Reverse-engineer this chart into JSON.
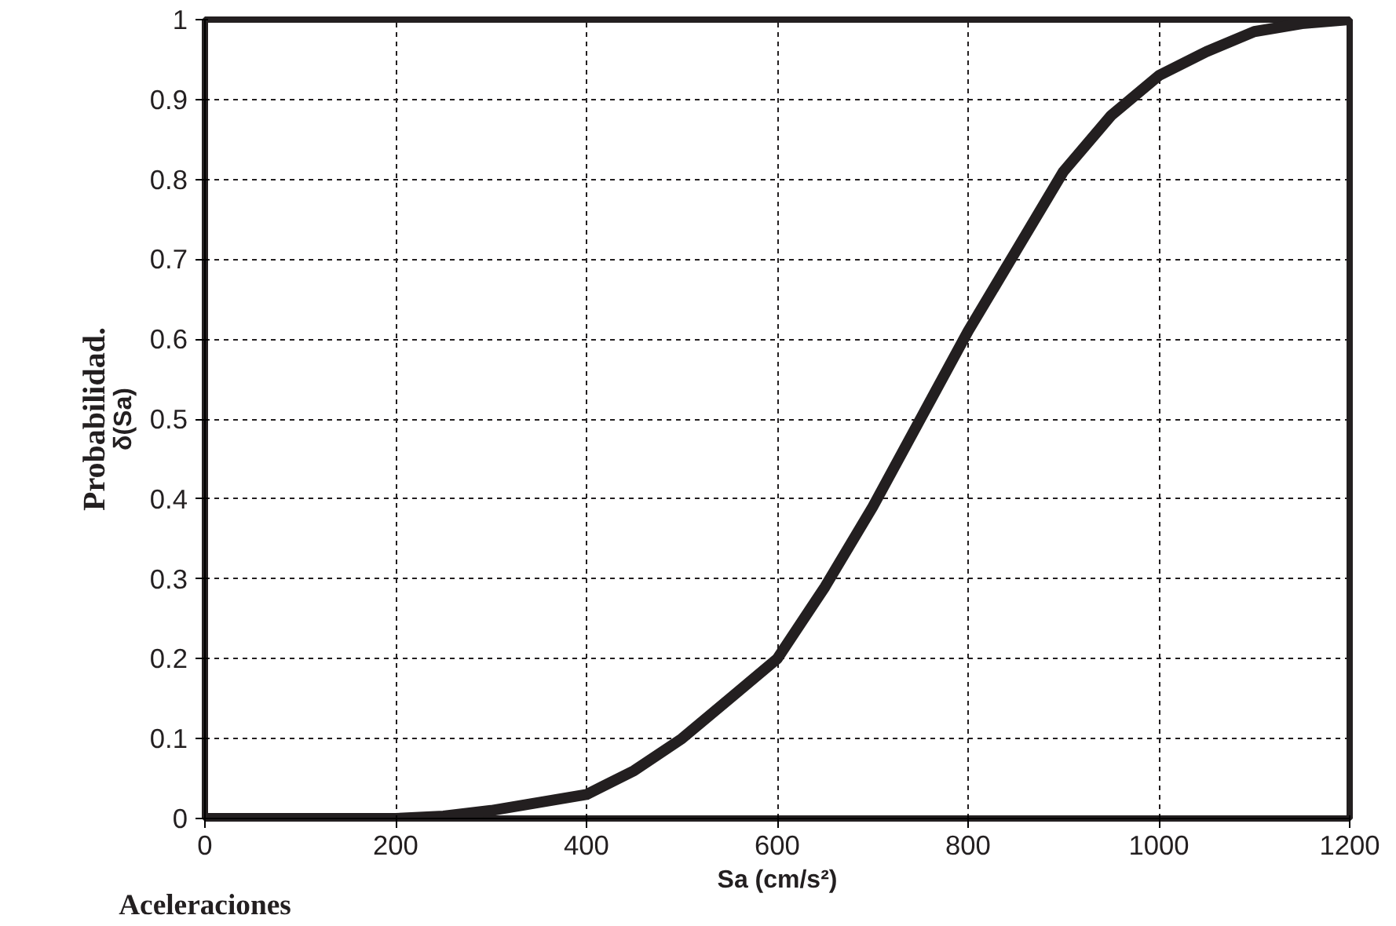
{
  "chart_data": {
    "type": "line",
    "xlabel": "Sa (cm/s²)",
    "ylabel": "Probabilidad.",
    "annotations": [
      "δ(Sa)",
      "Aceleraciones"
    ],
    "x": [
      0,
      100,
      200,
      250,
      300,
      350,
      400,
      450,
      500,
      550,
      600,
      650,
      700,
      750,
      800,
      850,
      900,
      950,
      1000,
      1050,
      1100,
      1150,
      1200
    ],
    "series": [
      {
        "color": "#231f20",
        "values": [
          0,
          0,
          0,
          0.003,
          0.01,
          0.02,
          0.03,
          0.06,
          0.1,
          0.15,
          0.2,
          0.29,
          0.39,
          0.5,
          0.61,
          0.71,
          0.81,
          0.88,
          0.93,
          0.96,
          0.985,
          0.995,
          1
        ]
      }
    ],
    "xlim": [
      0,
      1200
    ],
    "xticks": [
      0,
      200,
      400,
      600,
      800,
      1000,
      1200
    ],
    "ylim": [
      0,
      1
    ],
    "yticks": [
      0,
      0.1,
      0.2,
      0.3,
      0.4,
      0.5,
      0.6,
      0.7,
      0.8,
      0.9,
      1
    ],
    "grid": true,
    "marker": "none",
    "line_style": "solid"
  }
}
